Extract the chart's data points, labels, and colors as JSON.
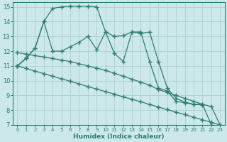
{
  "xlabel": "Humidex (Indice chaleur)",
  "xlim": [
    -0.5,
    23.5
  ],
  "ylim": [
    7,
    15.3
  ],
  "yticks": [
    7,
    8,
    9,
    10,
    11,
    12,
    13,
    14,
    15
  ],
  "xticks": [
    0,
    1,
    2,
    3,
    4,
    5,
    6,
    7,
    8,
    9,
    10,
    11,
    12,
    13,
    14,
    15,
    16,
    17,
    18,
    19,
    20,
    21,
    22,
    23
  ],
  "bg_color": "#cce8e8",
  "grid_color": "#b0d4d4",
  "line_color": "#2e7d6e",
  "lines": [
    {
      "x": [
        0,
        1,
        2,
        3,
        4,
        5,
        6,
        7,
        8,
        9,
        10,
        11,
        12,
        13,
        14,
        15,
        16,
        17,
        18,
        19,
        20,
        21
      ],
      "y": [
        11.0,
        11.5,
        12.2,
        14.0,
        14.9,
        15.0,
        15.05,
        15.05,
        15.05,
        15.0,
        13.3,
        11.85,
        11.3,
        13.3,
        13.2,
        13.3,
        11.3,
        9.5,
        8.8,
        8.55,
        8.4,
        8.35
      ]
    },
    {
      "x": [
        0,
        1,
        2,
        3,
        4,
        5,
        6,
        7,
        8,
        9,
        10,
        11,
        12,
        13,
        14,
        15,
        16,
        17,
        18,
        19,
        20,
        21,
        22
      ],
      "y": [
        11.0,
        11.55,
        12.2,
        14.0,
        12.0,
        12.0,
        12.3,
        12.6,
        13.0,
        12.1,
        13.3,
        13.0,
        13.05,
        13.3,
        13.3,
        11.3,
        9.5,
        9.3,
        8.6,
        8.5,
        8.4,
        8.4,
        7.0
      ]
    },
    {
      "x": [
        0,
        1,
        2,
        3,
        4,
        5,
        6,
        7,
        8,
        9,
        10,
        11,
        12,
        13,
        14,
        15,
        16,
        17,
        18,
        19,
        20,
        21,
        22,
        23
      ],
      "y": [
        11.9,
        11.8,
        11.7,
        11.6,
        11.5,
        11.4,
        11.3,
        11.15,
        11.0,
        10.85,
        10.7,
        10.5,
        10.3,
        10.1,
        9.9,
        9.7,
        9.4,
        9.2,
        9.0,
        8.8,
        8.6,
        8.4,
        8.25,
        7.0
      ]
    },
    {
      "x": [
        0,
        1,
        2,
        3,
        4,
        5,
        6,
        7,
        8,
        9,
        10,
        11,
        12,
        13,
        14,
        15,
        16,
        17,
        18,
        19,
        20,
        21,
        22,
        23
      ],
      "y": [
        11.0,
        10.83,
        10.65,
        10.48,
        10.3,
        10.13,
        9.96,
        9.78,
        9.6,
        9.43,
        9.26,
        9.09,
        8.9,
        8.74,
        8.57,
        8.39,
        8.22,
        8.04,
        7.87,
        7.7,
        7.52,
        7.35,
        7.17,
        7.0
      ]
    }
  ]
}
